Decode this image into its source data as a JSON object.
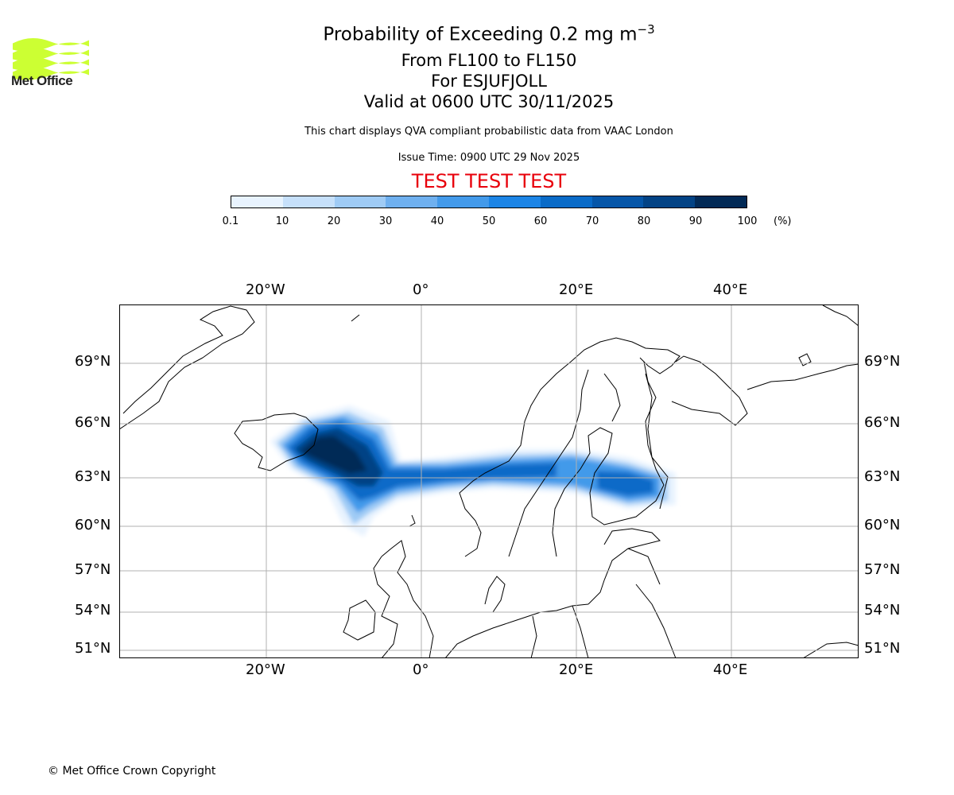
{
  "header": {
    "logo_text": "Met Office",
    "title_prefix": "Probability of Exceeding 0.2 mg m",
    "title_exponent": "−3",
    "flight_levels": "From FL100 to FL150",
    "volcano": "For ESJUFJOLL",
    "valid_time": "Valid at 0600 UTC 30/11/2025",
    "description": "This chart displays QVA compliant probabilistic data from VAAC London",
    "issue_time": "Issue Time: 0900 UTC 29 Nov 2025",
    "test_banner": "TEST TEST TEST"
  },
  "colors": {
    "logo_green": "#ccff33",
    "test_red": "#e8000b",
    "colorbar": [
      "#e8f3fe",
      "#c6e0fa",
      "#9fcbf5",
      "#6fb0ef",
      "#439aea",
      "#1c85e6",
      "#0a6bc8",
      "#0656a8",
      "#034385",
      "#022a56"
    ]
  },
  "colorbar": {
    "ticks": [
      "0.1",
      "10",
      "20",
      "30",
      "40",
      "50",
      "60",
      "70",
      "80",
      "90",
      "100"
    ],
    "unit": "(%)"
  },
  "map": {
    "lon_labels": [
      "20°W",
      "0°",
      "20°E",
      "40°E"
    ],
    "lat_labels": [
      "69°N",
      "66°N",
      "63°N",
      "60°N",
      "57°N",
      "54°N",
      "51°N"
    ]
  },
  "footer": {
    "copyright": "© Met Office Crown Copyright"
  }
}
